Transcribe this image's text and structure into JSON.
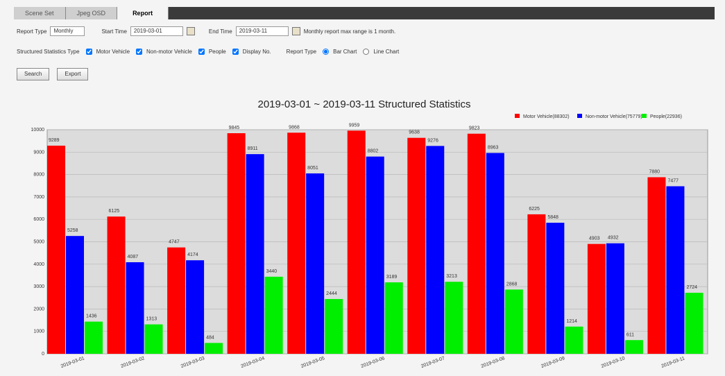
{
  "ui": {
    "tabs": [
      "Scene Set",
      "Jpeg OSD",
      "Report"
    ],
    "filters": {
      "report_type_label": "Report Type",
      "report_type_value": "Monthly",
      "start_label": "Start Time",
      "start_value": "2019-03-01",
      "end_label": "End Time",
      "end_value": "2019-03-11",
      "note": "Monthly report max range is 1 month."
    },
    "types": {
      "label": "Structured Statistics Type",
      "options": [
        "Motor Vehicle",
        "Non-motor Vehicle",
        "People",
        "Display No."
      ],
      "chart_label": "Report Type",
      "chart_options": [
        "Bar Chart",
        "Line Chart"
      ]
    },
    "buttons": [
      "Search",
      "Export"
    ]
  },
  "chart_data": {
    "type": "bar",
    "title": "2019-03-01 ~ 2019-03-11 Structured Statistics",
    "categories": [
      "2019-03-01",
      "2019-03-02",
      "2019-03-03",
      "2019-03-04",
      "2019-03-05",
      "2019-03-06",
      "2019-03-07",
      "2019-03-08",
      "2019-03-09",
      "2019-03-10",
      "2019-03-11"
    ],
    "series": [
      {
        "name": "Motor Vehicle(88302)",
        "color": "#ff0000",
        "values": [
          9289,
          6125,
          4747,
          9845,
          9868,
          9959,
          9638,
          9823,
          6225,
          4903,
          7880
        ]
      },
      {
        "name": "Non-motor Vehicle(75779)",
        "color": "#0000ff",
        "values": [
          5258,
          4087,
          4174,
          8911,
          8051,
          8802,
          9276,
          8963,
          5848,
          4932,
          7477
        ]
      },
      {
        "name": "People(22936)",
        "color": "#00ee00",
        "values": [
          1436,
          1313,
          484,
          3440,
          2444,
          3189,
          3213,
          2868,
          1214,
          611,
          2724
        ]
      }
    ],
    "ylim": [
      0,
      10000
    ],
    "yticks": [
      0,
      1000,
      2000,
      3000,
      4000,
      5000,
      6000,
      7000,
      8000,
      9000,
      10000
    ],
    "grid": true
  }
}
